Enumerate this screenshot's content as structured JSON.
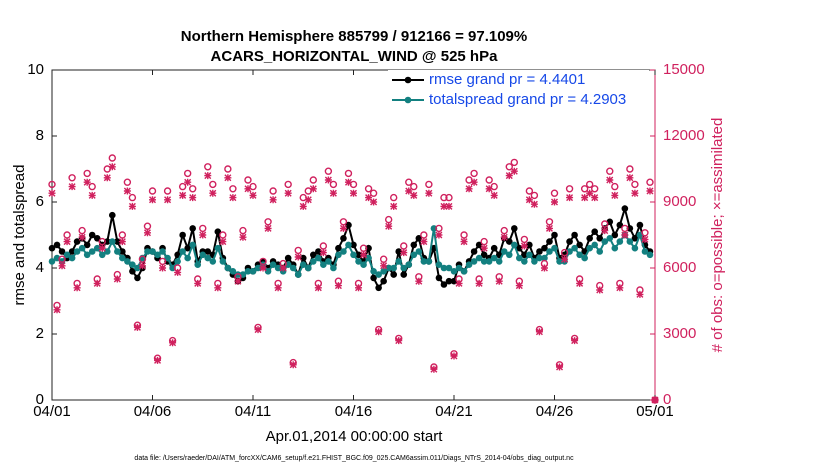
{
  "chart_data": {
    "type": "line",
    "title": "Northern Hemisphere 885799 / 912166 = 97.109%",
    "subtitle": "ACARS_HORIZONTAL_WIND @ 525 hPa",
    "xlabel": "Apr.01,2014 00:00:00 start",
    "ylabel": "rmse and totalspread",
    "y2label": "# of obs: o=possible; ×=assimilated",
    "footnote": "data file: /Users/raeder/DAI/ATM_forcXX/CAM6_setup/f.e21.FHIST_BGC.f09_025.CAM6assim.011/Diags_NTrS_2014-04/obs_diag_output.nc",
    "legend": "top-right",
    "xlim": [
      0,
      30
    ],
    "xticks": [
      {
        "value": 0,
        "label": "04/01"
      },
      {
        "value": 5,
        "label": "04/06"
      },
      {
        "value": 10,
        "label": "04/11"
      },
      {
        "value": 15,
        "label": "04/16"
      },
      {
        "value": 20,
        "label": "04/21"
      },
      {
        "value": 25,
        "label": "04/26"
      },
      {
        "value": 30,
        "label": "05/01"
      }
    ],
    "ylim": [
      0,
      10
    ],
    "yticks": [
      0,
      2,
      4,
      6,
      8,
      10
    ],
    "y2lim": [
      0,
      15000
    ],
    "y2ticks": [
      0,
      3000,
      6000,
      9000,
      12000,
      15000
    ],
    "y2color": "#d0215e",
    "x": [
      0,
      0.25,
      0.5,
      0.75,
      1,
      1.25,
      1.5,
      1.75,
      2,
      2.25,
      2.5,
      2.75,
      3,
      3.25,
      3.5,
      3.75,
      4,
      4.25,
      4.5,
      4.75,
      5,
      5.25,
      5.5,
      5.75,
      6,
      6.25,
      6.5,
      6.75,
      7,
      7.25,
      7.5,
      7.75,
      8,
      8.25,
      8.5,
      8.75,
      9,
      9.25,
      9.5,
      9.75,
      10,
      10.25,
      10.5,
      10.75,
      11,
      11.25,
      11.5,
      11.75,
      12,
      12.25,
      12.5,
      12.75,
      13,
      13.25,
      13.5,
      13.75,
      14,
      14.25,
      14.5,
      14.75,
      15,
      15.25,
      15.5,
      15.75,
      16,
      16.25,
      16.5,
      16.75,
      17,
      17.25,
      17.5,
      17.75,
      18,
      18.25,
      18.5,
      18.75,
      19,
      19.25,
      19.5,
      19.75,
      20,
      20.25,
      20.5,
      20.75,
      21,
      21.25,
      21.5,
      21.75,
      22,
      22.25,
      22.5,
      22.75,
      23,
      23.25,
      23.5,
      23.75,
      24,
      24.25,
      24.5,
      24.75,
      25,
      25.25,
      25.5,
      25.75,
      26,
      26.25,
      26.5,
      26.75,
      27,
      27.25,
      27.5,
      27.75,
      28,
      28.25,
      28.5,
      28.75,
      29,
      29.25,
      29.5,
      29.75,
      30
    ],
    "series": [
      {
        "name": "rmse grand pr = 4.4401",
        "color": "#000000",
        "marker": "dot",
        "axis": "y",
        "values": [
          4.6,
          4.7,
          4.5,
          4.3,
          4.5,
          4.8,
          4.9,
          4.7,
          5.0,
          4.9,
          4.7,
          4.8,
          5.6,
          4.8,
          4.5,
          4.3,
          3.9,
          3.7,
          4.0,
          4.6,
          4.5,
          4.3,
          4.6,
          4.2,
          4.1,
          4.4,
          5.0,
          4.6,
          5.2,
          4.2,
          4.5,
          4.5,
          4.4,
          5.1,
          4.3,
          4.0,
          3.8,
          3.6,
          3.7,
          4.0,
          3.9,
          4.1,
          4.2,
          4.0,
          4.2,
          4.1,
          4.0,
          4.3,
          4.1,
          3.8,
          4.3,
          4.0,
          4.4,
          4.5,
          4.2,
          4.3,
          4.1,
          4.6,
          4.9,
          5.3,
          4.7,
          4.4,
          4.2,
          4.6,
          3.7,
          3.4,
          3.6,
          4.0,
          3.8,
          4.5,
          3.8,
          4.1,
          4.7,
          4.9,
          4.3,
          4.2,
          4.6,
          3.7,
          3.5,
          3.6,
          3.6,
          4.1,
          3.9,
          4.2,
          4.5,
          4.7,
          4.4,
          4.3,
          4.6,
          4.4,
          4.9,
          4.8,
          5.2,
          4.6,
          4.4,
          4.7,
          4.3,
          4.5,
          4.6,
          4.8,
          5.0,
          4.3,
          4.4,
          4.8,
          5.0,
          4.7,
          4.5,
          4.9,
          5.1,
          4.9,
          5.2,
          5.4,
          5.0,
          5.3,
          5.8,
          5.2,
          4.9,
          5.3,
          4.7,
          4.5,
          null
        ]
      },
      {
        "name": "totalspread grand pr = 4.2903",
        "color": "#138080",
        "marker": "dot",
        "axis": "y",
        "values": [
          4.2,
          4.3,
          4.2,
          4.4,
          4.3,
          4.5,
          4.6,
          4.4,
          4.5,
          4.6,
          4.4,
          4.5,
          4.8,
          4.5,
          4.3,
          4.2,
          4.1,
          4.0,
          4.3,
          4.5,
          4.5,
          4.4,
          4.5,
          4.3,
          4.0,
          4.2,
          4.5,
          4.3,
          4.7,
          4.1,
          4.4,
          4.3,
          4.2,
          4.6,
          4.2,
          4.0,
          3.9,
          3.8,
          3.8,
          3.9,
          3.9,
          4.0,
          4.1,
          3.9,
          4.1,
          4.0,
          3.9,
          4.1,
          4.0,
          3.8,
          4.1,
          4.0,
          4.2,
          4.3,
          4.1,
          4.2,
          4.0,
          4.4,
          4.5,
          4.7,
          4.4,
          4.2,
          4.1,
          4.3,
          3.9,
          3.8,
          3.9,
          4.0,
          4.0,
          4.2,
          4.0,
          4.1,
          4.4,
          4.5,
          4.2,
          4.2,
          5.2,
          4.1,
          4.0,
          4.0,
          3.9,
          4.0,
          3.9,
          4.1,
          4.2,
          4.3,
          4.2,
          4.2,
          4.3,
          4.2,
          4.5,
          4.4,
          4.7,
          4.3,
          4.2,
          4.4,
          4.2,
          4.3,
          4.3,
          4.5,
          4.6,
          4.2,
          4.2,
          4.5,
          4.6,
          4.4,
          4.3,
          4.6,
          4.7,
          4.5,
          4.8,
          4.9,
          4.6,
          4.8,
          5.0,
          4.8,
          4.6,
          5.0,
          4.5,
          4.4,
          null
        ]
      },
      {
        "color": "#d0215e",
        "marker": "circle",
        "axis": "y2",
        "values": [
          9800,
          4300,
          6400,
          7500,
          10100,
          5300,
          7700,
          10300,
          9700,
          5500,
          7200,
          10500,
          11000,
          5700,
          7500,
          9900,
          9200,
          3400,
          6400,
          7900,
          9500,
          1900,
          6300,
          9500,
          2700,
          6000,
          9700,
          10300,
          9600,
          5500,
          7800,
          10600,
          9800,
          5300,
          7500,
          10500,
          9600,
          5600,
          7700,
          10000,
          9700,
          3300,
          6300,
          8100,
          9500,
          5300,
          6200,
          9800,
          1700,
          6800,
          9200,
          9500,
          10000,
          5300,
          7000,
          10400,
          9800,
          5400,
          8100,
          10300,
          9800,
          5300,
          6900,
          9600,
          9400,
          3200,
          6400,
          8200,
          9200,
          2800,
          7000,
          9900,
          9700,
          5600,
          7500,
          9800,
          1500,
          7800,
          9200,
          9200,
          2100,
          5500,
          7500,
          10000,
          10300,
          5500,
          7200,
          10000,
          9700,
          5600,
          7700,
          10600,
          10800,
          5400,
          7300,
          9500,
          9300,
          3200,
          6200,
          8100,
          9400,
          1600,
          6700,
          9600,
          2800,
          5500,
          9600,
          9800,
          9600,
          5200,
          8000,
          10400,
          9700,
          5300,
          7800,
          10500,
          9800,
          5000,
          7600,
          9900,
          0
        ]
      },
      {
        "color": "#d0215e",
        "marker": "asterisk",
        "axis": "y2",
        "values": [
          9400,
          4100,
          6100,
          7200,
          9700,
          5100,
          7400,
          9900,
          9300,
          5300,
          6900,
          10100,
          10600,
          5500,
          7200,
          9500,
          8800,
          3300,
          6100,
          7600,
          9100,
          1800,
          6000,
          9100,
          2600,
          5800,
          9300,
          9900,
          9200,
          5300,
          7500,
          10200,
          9400,
          5100,
          7200,
          10100,
          9200,
          5400,
          7400,
          9600,
          9300,
          3200,
          6000,
          7800,
          9100,
          5100,
          6000,
          9400,
          1600,
          6500,
          8800,
          9100,
          9600,
          5100,
          6700,
          10000,
          9400,
          5200,
          7800,
          9900,
          9400,
          5100,
          6600,
          9200,
          9000,
          3100,
          6100,
          7900,
          8800,
          2700,
          6700,
          9500,
          9300,
          5400,
          7200,
          9400,
          1400,
          7500,
          8800,
          8800,
          2000,
          5300,
          7200,
          9600,
          9900,
          5300,
          6900,
          9600,
          9300,
          5400,
          7400,
          10200,
          10400,
          5200,
          7000,
          9100,
          8900,
          3100,
          6000,
          7800,
          9000,
          1500,
          6400,
          9200,
          2700,
          5300,
          9200,
          9400,
          9200,
          5000,
          7700,
          10000,
          9300,
          5100,
          7500,
          10100,
          9400,
          4800,
          7300,
          9500,
          0
        ]
      }
    ]
  }
}
